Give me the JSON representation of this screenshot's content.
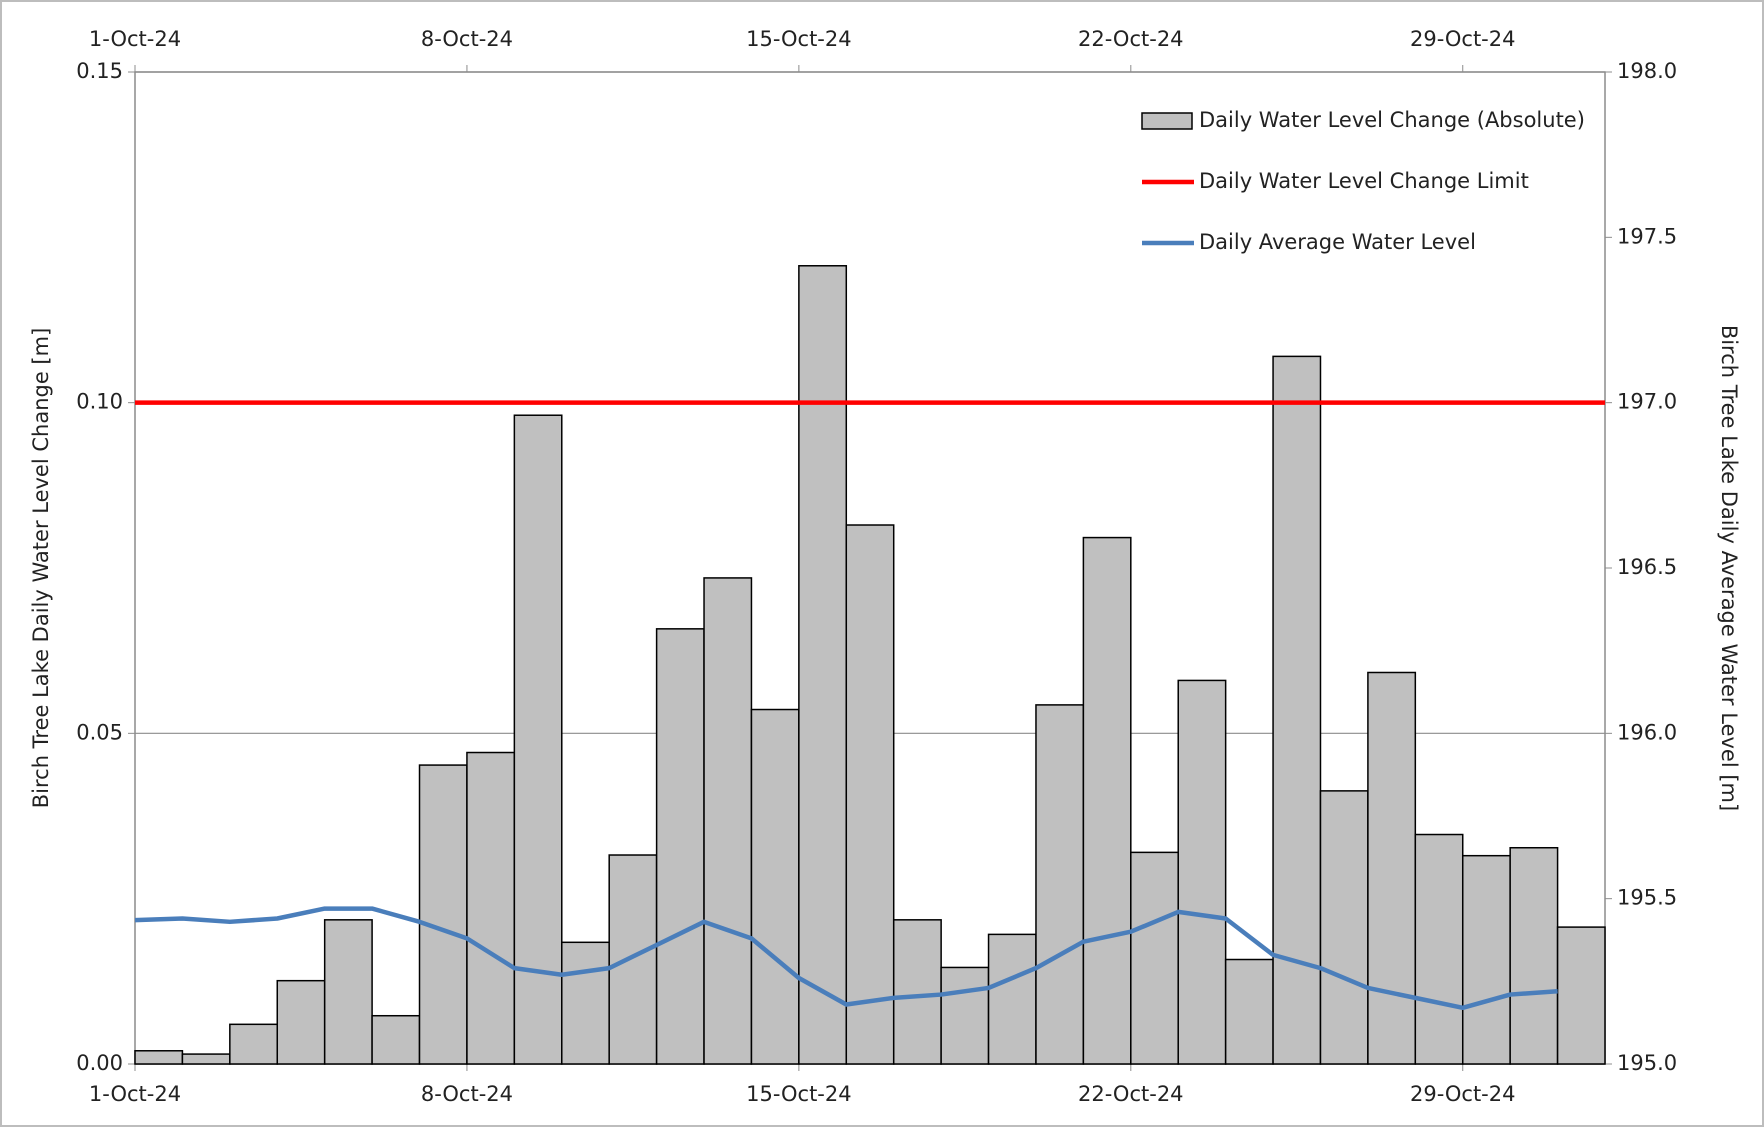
{
  "chart_data": {
    "type": "bar-line",
    "x": [
      "1-Oct-24",
      "2-Oct-24",
      "3-Oct-24",
      "4-Oct-24",
      "5-Oct-24",
      "6-Oct-24",
      "7-Oct-24",
      "8-Oct-24",
      "9-Oct-24",
      "10-Oct-24",
      "11-Oct-24",
      "12-Oct-24",
      "13-Oct-24",
      "14-Oct-24",
      "15-Oct-24",
      "16-Oct-24",
      "17-Oct-24",
      "18-Oct-24",
      "19-Oct-24",
      "20-Oct-24",
      "21-Oct-24",
      "22-Oct-24",
      "23-Oct-24",
      "24-Oct-24",
      "25-Oct-24",
      "26-Oct-24",
      "27-Oct-24",
      "28-Oct-24",
      "29-Oct-24",
      "30-Oct-24",
      "31-Oct-24"
    ],
    "series": [
      {
        "name": "Daily Water Level Change (Absolute)",
        "color": "#c0c0c0",
        "values": [
          0.002,
          0.0015,
          0.006,
          0.0126,
          0.0218,
          0.0073,
          0.0452,
          0.0471,
          0.0981,
          0.0184,
          0.0316,
          0.0658,
          0.0735,
          0.0536,
          0.1207,
          0.0815,
          0.0218,
          0.0146,
          0.0196,
          0.0543,
          0.0796,
          0.032,
          0.058,
          0.0158,
          0.107,
          0.0413,
          0.0592,
          0.0347,
          0.0315,
          0.0327,
          0.0207
        ]
      },
      {
        "name": "Daily Water Level Change Limit",
        "color": "#ff0000",
        "value": 0.1
      },
      {
        "name": "Daily Average Water Level",
        "color": "#4a7ebb",
        "axis": "y2",
        "values": [
          195.435,
          195.44,
          195.43,
          195.44,
          195.47,
          195.47,
          195.43,
          195.38,
          195.29,
          195.27,
          195.29,
          195.36,
          195.43,
          195.38,
          195.26,
          195.18,
          195.2,
          195.21,
          195.23,
          195.29,
          195.37,
          195.4,
          195.46,
          195.44,
          195.33,
          195.29,
          195.23,
          195.2,
          195.17,
          195.21,
          195.22
        ]
      }
    ],
    "xlim": [
      0,
      31
    ],
    "xticks": [
      {
        "value": 0,
        "label": "1-Oct-24"
      },
      {
        "value": 7,
        "label": "8-Oct-24"
      },
      {
        "value": 14,
        "label": "15-Oct-24"
      },
      {
        "value": 21,
        "label": "22-Oct-24"
      },
      {
        "value": 28,
        "label": "29-Oct-24"
      }
    ],
    "ylim": [
      0,
      0.15
    ],
    "yticks": [
      {
        "value": 0,
        "label": "0.00"
      },
      {
        "value": 0.05,
        "label": "0.05"
      },
      {
        "value": 0.1,
        "label": "0.10"
      },
      {
        "value": 0.15,
        "label": "0.15"
      }
    ],
    "y2lim": [
      195,
      198
    ],
    "y2ticks": [
      {
        "value": 195,
        "label": "195.0"
      },
      {
        "value": 195.5,
        "label": "195.5"
      },
      {
        "value": 196,
        "label": "196.0"
      },
      {
        "value": 196.5,
        "label": "196.5"
      },
      {
        "value": 197,
        "label": "197.0"
      },
      {
        "value": 197.5,
        "label": "197.5"
      },
      {
        "value": 198,
        "label": "198.0"
      }
    ],
    "ylabel": "Birch Tree Lake Daily Water Level Change [m]",
    "y2label": "Birch Tree Lake Daily Average Water Level [m]",
    "grid": true,
    "legend": "top-right"
  }
}
